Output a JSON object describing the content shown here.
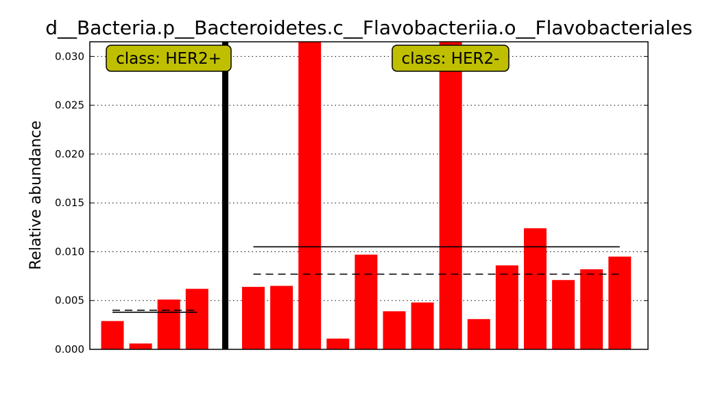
{
  "chart_data": {
    "type": "bar",
    "title": "d__Bacteria.p__Bacteroidetes.c__Flavobacteriia.o__Flavobacteriales",
    "xlabel": "",
    "ylabel": "Relative abundance",
    "ylim": [
      0,
      0.0315
    ],
    "yticks": [
      "0.000",
      "0.005",
      "0.010",
      "0.015",
      "0.020",
      "0.025",
      "0.030"
    ],
    "grid": true,
    "colors": {
      "bar": "#ff0000",
      "class_box": "#bfbf00",
      "separator": "#000000"
    },
    "groups": [
      {
        "label": "class: HER2+",
        "values": [
          0.0029,
          0.0006,
          0.0051,
          0.0062
        ],
        "mean": 0.0038,
        "median": 0.004
      },
      {
        "label": "class: HER2-",
        "values": [
          0.0064,
          0.0065,
          0.0315,
          0.0011,
          0.0097,
          0.0039,
          0.0048,
          0.0315,
          0.0031,
          0.0086,
          0.0124,
          0.0071,
          0.0082,
          0.0095
        ],
        "mean": 0.0105,
        "median": 0.0077
      }
    ]
  }
}
